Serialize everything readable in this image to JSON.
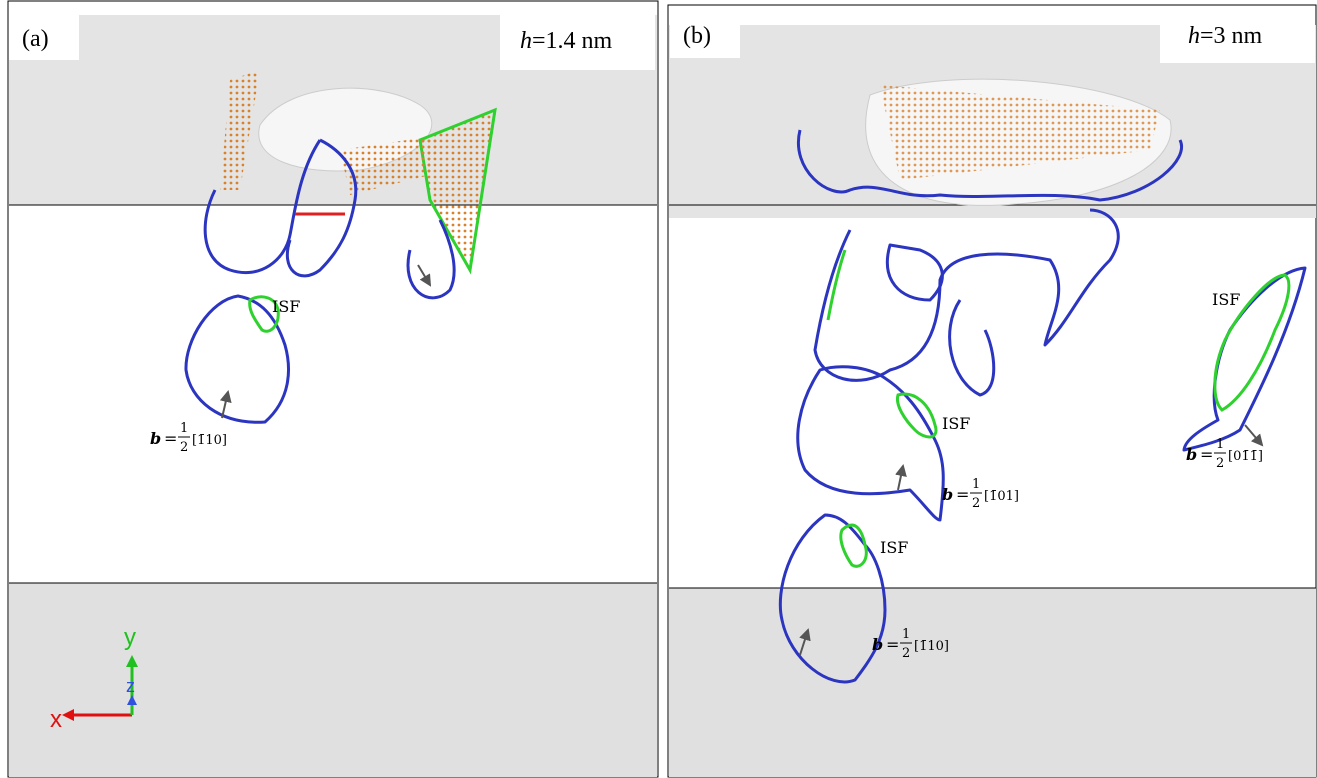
{
  "panels": [
    {
      "label": "(a)",
      "thickness_symbol": "h",
      "thickness_value": "=1.4 nm",
      "stacking_faults": [
        "ISF"
      ],
      "burgers": [
        {
          "symbol": "b",
          "equals": "=",
          "numerator": "1",
          "denominator": "2",
          "index": "[1̄10]"
        }
      ]
    },
    {
      "label": "(b)",
      "thickness_symbol": "h",
      "thickness_value": "=3 nm",
      "stacking_faults": [
        "ISF",
        "ISF",
        "ISF"
      ],
      "burgers": [
        {
          "symbol": "b",
          "equals": "=",
          "numerator": "1",
          "denominator": "2",
          "index": "[1̄01]"
        },
        {
          "symbol": "b",
          "equals": "=",
          "numerator": "1",
          "denominator": "2",
          "index": "[1̄10]"
        },
        {
          "symbol": "b",
          "equals": "=",
          "numerator": "1",
          "denominator": "2",
          "index": "[01̄1̄]"
        }
      ]
    }
  ],
  "axes": {
    "x": "x",
    "y": "y",
    "z": "z"
  }
}
